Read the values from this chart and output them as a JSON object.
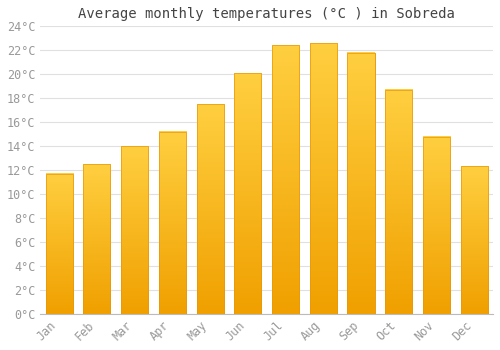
{
  "title": "Average monthly temperatures (°C ) in Sobreda",
  "months": [
    "Jan",
    "Feb",
    "Mar",
    "Apr",
    "May",
    "Jun",
    "Jul",
    "Aug",
    "Sep",
    "Oct",
    "Nov",
    "Dec"
  ],
  "values": [
    11.7,
    12.5,
    14.0,
    15.2,
    17.5,
    20.1,
    22.4,
    22.6,
    21.8,
    18.7,
    14.8,
    12.3
  ],
  "bar_color_top": "#FFC125",
  "bar_color_bottom": "#F5A800",
  "bar_edge_color": "#E8960A",
  "background_color": "#ffffff",
  "grid_color": "#e0e0e0",
  "ytick_step": 2,
  "ymin": 0,
  "ymax": 24,
  "title_fontsize": 10,
  "tick_fontsize": 8.5,
  "tick_label_color": "#999999",
  "title_color": "#444444"
}
